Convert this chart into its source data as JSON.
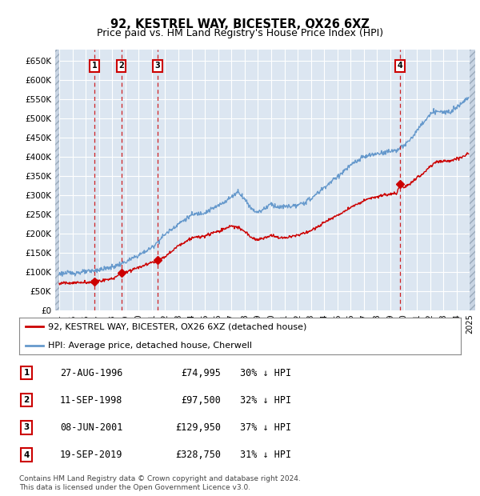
{
  "title": "92, KESTREL WAY, BICESTER, OX26 6XZ",
  "subtitle": "Price paid vs. HM Land Registry's House Price Index (HPI)",
  "title_fontsize": 10.5,
  "subtitle_fontsize": 9,
  "ylim": [
    0,
    680000
  ],
  "yticks": [
    0,
    50000,
    100000,
    150000,
    200000,
    250000,
    300000,
    350000,
    400000,
    450000,
    500000,
    550000,
    600000,
    650000
  ],
  "ytick_labels": [
    "£0",
    "£50K",
    "£100K",
    "£150K",
    "£200K",
    "£250K",
    "£300K",
    "£350K",
    "£400K",
    "£450K",
    "£500K",
    "£550K",
    "£600K",
    "£650K"
  ],
  "hpi_color": "#6699cc",
  "price_color": "#cc0000",
  "background_color": "#dce6f1",
  "transactions": [
    {
      "date": 1996.65,
      "price": 74995,
      "label": "1"
    },
    {
      "date": 1998.69,
      "price": 97500,
      "label": "2"
    },
    {
      "date": 2001.44,
      "price": 129950,
      "label": "3"
    },
    {
      "date": 2019.72,
      "price": 328750,
      "label": "4"
    }
  ],
  "transaction_details": [
    {
      "num": "1",
      "date": "27-AUG-1996",
      "price": "£74,995",
      "pct": "30% ↓ HPI"
    },
    {
      "num": "2",
      "date": "11-SEP-1998",
      "price": "£97,500",
      "pct": "32% ↓ HPI"
    },
    {
      "num": "3",
      "date": "08-JUN-2001",
      "price": "£129,950",
      "pct": "37% ↓ HPI"
    },
    {
      "num": "4",
      "date": "19-SEP-2019",
      "price": "£328,750",
      "pct": "31% ↓ HPI"
    }
  ],
  "legend_line1": "92, KESTREL WAY, BICESTER, OX26 6XZ (detached house)",
  "legend_line2": "HPI: Average price, detached house, Cherwell",
  "footer1": "Contains HM Land Registry data © Crown copyright and database right 2024.",
  "footer2": "This data is licensed under the Open Government Licence v3.0.",
  "xlim_start": 1993.7,
  "xlim_end": 2025.4,
  "hatch_left_end": 1994.0,
  "hatch_right_start": 2025.0,
  "data_start": 1994.0,
  "data_end": 2025.0
}
